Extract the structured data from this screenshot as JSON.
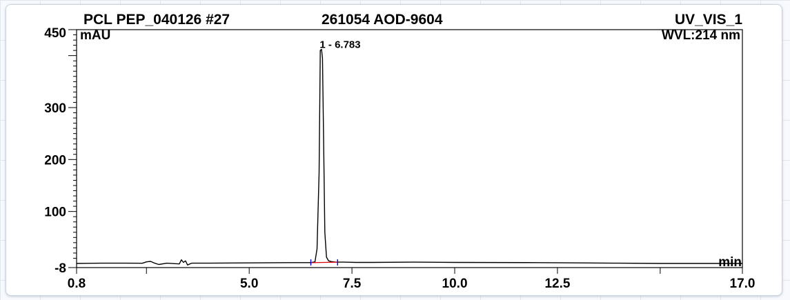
{
  "chart_data": {
    "type": "line",
    "header": {
      "sample": "PCL PEP_040126 #27",
      "id": "261054 AOD-9604",
      "channel": "UV_VIS_1"
    },
    "ylabel": "mAU",
    "xlabel": "min",
    "wavelength": "WVL:214 nm",
    "xlim": [
      0.8,
      17.0
    ],
    "ylim": [
      -8,
      450
    ],
    "x_ticks": [
      "0.8",
      "5.0",
      "7.5",
      "10.0",
      "12.5",
      "17.0"
    ],
    "y_ticks": [
      "450",
      "300",
      "200",
      "100",
      "-8"
    ],
    "peaks": [
      {
        "label": "1 - 6.783",
        "x": 6.783,
        "y": 412
      }
    ],
    "series": [
      {
        "color": "#000000",
        "x": [
          0.8,
          1.4,
          2.0,
          2.4,
          2.5,
          2.6,
          2.7,
          2.8,
          3.0,
          3.3,
          3.35,
          3.4,
          3.45,
          3.5,
          3.6,
          4.0,
          5.0,
          6.0,
          6.5,
          6.6,
          6.65,
          6.7,
          6.73,
          6.76,
          6.783,
          6.81,
          6.84,
          6.88,
          6.93,
          7.0,
          7.1,
          7.3,
          7.6,
          8.0,
          9.0,
          10.0,
          12.0,
          13.0,
          14.0,
          15.0,
          17.0
        ],
        "y": [
          0,
          0.5,
          0.5,
          0.3,
          3,
          4,
          0.5,
          -2,
          0.5,
          -1,
          7,
          2,
          5,
          -3,
          0.5,
          0.5,
          1,
          1.5,
          1.5,
          3,
          28,
          175,
          410,
          412,
          395,
          240,
          60,
          12,
          5,
          3.5,
          2.5,
          2.5,
          2,
          2,
          2.5,
          2,
          1.5,
          1,
          0.5,
          0,
          0
        ]
      }
    ],
    "baseline": {
      "color": "#e00000",
      "x": [
        6.5,
        7.15
      ],
      "y": [
        1.5,
        2.5
      ]
    },
    "delimiters": {
      "color": "#0000dd",
      "x": [
        6.5,
        7.15
      ]
    }
  }
}
